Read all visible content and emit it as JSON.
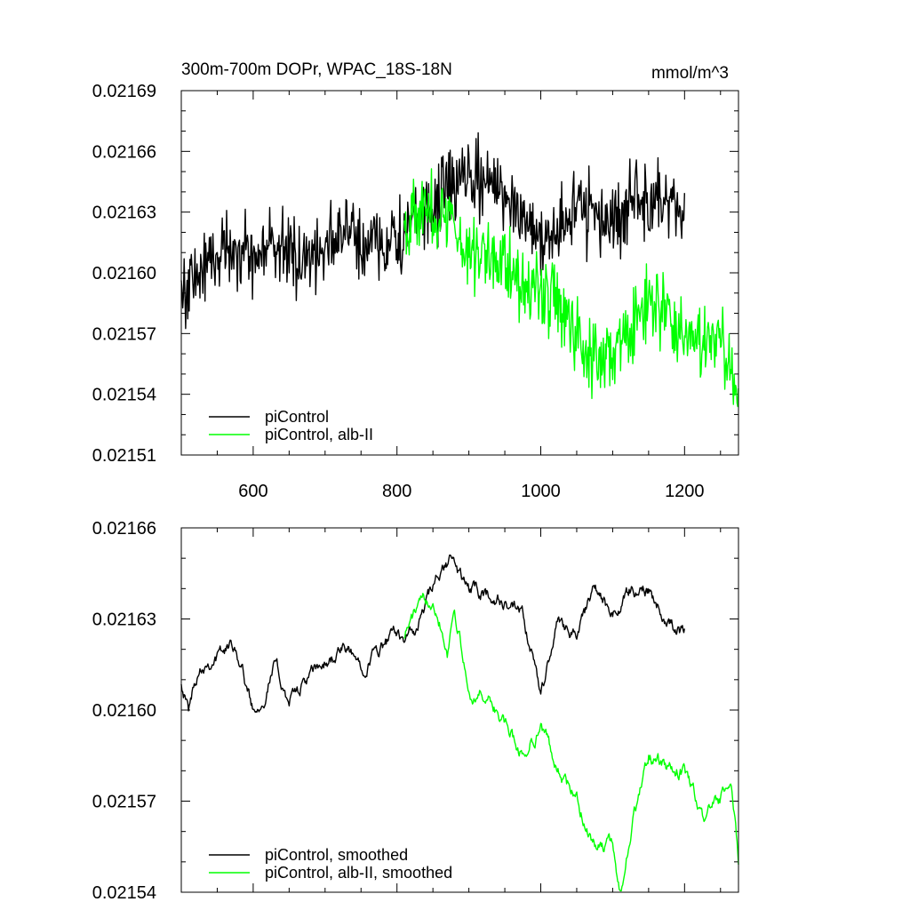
{
  "colors": {
    "black_series": "#000000",
    "green_series": "#00ff00"
  },
  "chart_data": [
    {
      "type": "line",
      "title": "300m-700m DOPr, WPAC_18S-18N",
      "units": "mmol/m^3",
      "xlim": [
        500,
        1275
      ],
      "ylim": [
        0.02151,
        0.02169
      ],
      "x_ticks": [
        600,
        800,
        1000,
        1200
      ],
      "x_tick_labels": [
        "600",
        "800",
        "1000",
        "1200"
      ],
      "y_ticks": [
        0.02151,
        0.02154,
        0.02157,
        0.0216,
        0.02163,
        0.02166,
        0.02169
      ],
      "y_tick_labels": [
        "0.02151",
        "0.02154",
        "0.02157",
        "0.02160",
        "0.02163",
        "0.02166",
        "0.02169"
      ],
      "legend_position": "bottom-left",
      "series": [
        {
          "name": "piControl",
          "color": "#000000",
          "noise": 1.7e-05,
          "x": [
            500,
            525,
            550,
            575,
            600,
            625,
            650,
            675,
            700,
            725,
            750,
            775,
            800,
            825,
            850,
            875,
            900,
            925,
            950,
            975,
            1000,
            1025,
            1050,
            1075,
            1100,
            1125,
            1150,
            1175,
            1200
          ],
          "y": [
            0.02159,
            0.0216,
            0.02161,
            0.021615,
            0.021605,
            0.021615,
            0.02161,
            0.021605,
            0.021615,
            0.02162,
            0.021615,
            0.021615,
            0.021615,
            0.021625,
            0.02163,
            0.021645,
            0.021645,
            0.021645,
            0.02164,
            0.02163,
            0.021615,
            0.021625,
            0.02163,
            0.02163,
            0.021625,
            0.021635,
            0.021635,
            0.021635,
            0.02162
          ]
        },
        {
          "name": "piControl, alb-II",
          "color": "#00ff00",
          "noise": 1.7e-05,
          "x": [
            810,
            825,
            850,
            875,
            900,
            925,
            950,
            975,
            1000,
            1025,
            1050,
            1075,
            1100,
            1125,
            1150,
            1175,
            1200,
            1225,
            1250,
            1275
          ],
          "y": [
            0.021625,
            0.02163,
            0.02163,
            0.021625,
            0.02161,
            0.02161,
            0.021605,
            0.021595,
            0.021595,
            0.02158,
            0.02157,
            0.02156,
            0.02156,
            0.02157,
            0.021585,
            0.02158,
            0.02157,
            0.021565,
            0.021568,
            0.021535
          ]
        }
      ]
    },
    {
      "type": "line",
      "xlim": [
        500,
        1275
      ],
      "ylim": [
        0.02154,
        0.02166
      ],
      "x_ticks": [
        600,
        800,
        1000,
        1200
      ],
      "y_ticks": [
        0.02154,
        0.02157,
        0.0216,
        0.02163,
        0.02166
      ],
      "y_tick_labels": [
        "0.02154",
        "0.02157",
        "0.02160",
        "0.02163",
        "0.02166"
      ],
      "legend_position": "bottom-left",
      "series": [
        {
          "name": "piControl, smoothed",
          "color": "#000000",
          "noise": 3.5e-06,
          "x": [
            500,
            510,
            525,
            550,
            575,
            600,
            615,
            630,
            650,
            675,
            700,
            725,
            750,
            775,
            800,
            825,
            850,
            875,
            885,
            900,
            925,
            950,
            975,
            1000,
            1025,
            1050,
            1075,
            1100,
            1125,
            1150,
            1175,
            1200
          ],
          "y": [
            0.02161,
            0.0216,
            0.021615,
            0.021618,
            0.021622,
            0.0216,
            0.021605,
            0.021615,
            0.021603,
            0.02161,
            0.021615,
            0.02162,
            0.021615,
            0.02162,
            0.021625,
            0.021625,
            0.02164,
            0.02165,
            0.021645,
            0.02164,
            0.021638,
            0.021635,
            0.02163,
            0.021605,
            0.02163,
            0.021625,
            0.02164,
            0.02163,
            0.02164,
            0.02164,
            0.02163,
            0.021625
          ]
        },
        {
          "name": "piControl, alb-II, smoothed",
          "color": "#00ff00",
          "noise": 3.5e-06,
          "x": [
            810,
            825,
            850,
            860,
            870,
            880,
            900,
            925,
            950,
            975,
            1000,
            1025,
            1050,
            1075,
            1100,
            1110,
            1125,
            1150,
            1175,
            1200,
            1225,
            1250,
            1265,
            1275
          ],
          "y": [
            0.021625,
            0.021632,
            0.021638,
            0.02163,
            0.02162,
            0.021635,
            0.021605,
            0.021605,
            0.021595,
            0.021585,
            0.021595,
            0.02158,
            0.02157,
            0.021555,
            0.021555,
            0.02154,
            0.02156,
            0.021585,
            0.02158,
            0.02158,
            0.021565,
            0.02157,
            0.021575,
            0.02155
          ]
        }
      ]
    }
  ]
}
